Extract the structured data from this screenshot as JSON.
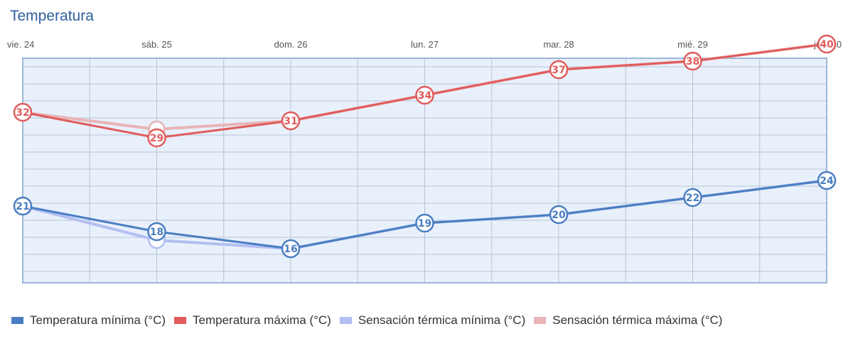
{
  "title": "Temperatura",
  "legend": {
    "min": "Temperatura mínima (°C)",
    "max": "Temperatura máxima (°C)",
    "smin": "Sensación térmica mínima (°C)",
    "smax": "Sensación térmica máxima (°C)"
  },
  "chart_data": {
    "type": "line",
    "x": [
      "vie. 24",
      "sáb. 25",
      "dom. 26",
      "lun. 27",
      "mar. 28",
      "mié. 29",
      "jue. 30"
    ],
    "ylim": [
      14,
      40
    ],
    "grid": true,
    "legend_position": "bottom",
    "series": [
      {
        "name": "Sensación térmica mínima (°C)",
        "values": [
          21,
          17,
          16,
          19,
          20,
          22,
          24
        ],
        "color": "#b3bff2",
        "labels": false
      },
      {
        "name": "Sensación térmica máxima (°C)",
        "values": [
          32,
          30,
          31,
          34,
          37,
          38,
          40
        ],
        "color": "#e8b4b6",
        "labels": false
      },
      {
        "name": "Temperatura mínima (°C)",
        "values": [
          21,
          18,
          16,
          19,
          20,
          22,
          24
        ],
        "color": "#4a7ec2",
        "labels": true
      },
      {
        "name": "Temperatura máxima (°C)",
        "values": [
          32,
          29,
          31,
          34,
          37,
          38,
          40
        ],
        "color": "#e05c5c",
        "labels": true
      }
    ]
  }
}
